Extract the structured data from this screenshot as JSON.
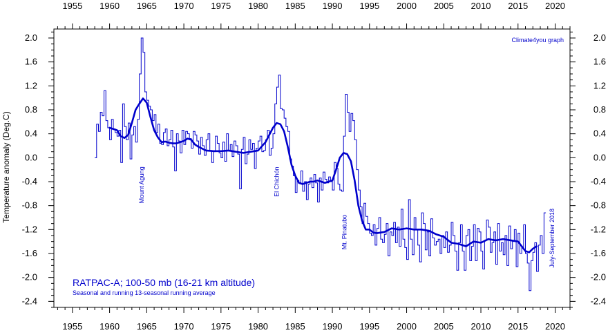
{
  "chart_data": {
    "type": "line",
    "ylabel": "Temperature anomaly (Deg.C)",
    "credit": "Climate4you graph",
    "legend_title": "RATPAC-A; 100-50 mb (16-21 km altitude)",
    "legend_subtitle": "Seasonal and running 13-seasonal running average",
    "xlim": [
      1952.5,
      2022
    ],
    "ylim": [
      -2.5,
      2.15
    ],
    "x_ticks": [
      1955,
      1960,
      1965,
      1970,
      1975,
      1980,
      1985,
      1990,
      1995,
      2000,
      2005,
      2010,
      2015,
      2020
    ],
    "y_ticks": [
      2.0,
      1.6,
      1.2,
      0.8,
      0.4,
      0.0,
      -0.4,
      -0.8,
      -1.2,
      -1.6,
      -2.0,
      -2.4
    ],
    "x_tick_labels": [
      "1955",
      "1960",
      "1965",
      "1970",
      "1975",
      "1980",
      "1985",
      "1990",
      "1995",
      "2000",
      "2005",
      "2010",
      "2015",
      "2020"
    ],
    "y_tick_labels": [
      "2.0",
      "1.6",
      "1.2",
      "0.8",
      "0.4",
      "0.0",
      "-0.4",
      "-0.8",
      "-1.2",
      "-1.6",
      "-2.0",
      "-2.4"
    ],
    "colors": {
      "series": "#0000cc",
      "axis": "#000000",
      "text": "#0000cc"
    },
    "annotations": [
      {
        "text": "Mount Agung",
        "x": 1964.3,
        "y": -0.15
      },
      {
        "text": "El Chichón",
        "x": 1982.5,
        "y": -0.15
      },
      {
        "text": "Mt. Pinatubo",
        "x": 1991.6,
        "y": -0.95
      },
      {
        "text": "July-September 2018",
        "x": 2019.6,
        "y": -0.85
      }
    ],
    "series": [
      {
        "style": "step",
        "x": [
          1958.0,
          1958.25,
          1958.5,
          1958.75,
          1959.0,
          1959.25,
          1959.5,
          1959.75,
          1960.0,
          1960.25,
          1960.5,
          1960.75,
          1961.0,
          1961.25,
          1961.5,
          1961.75,
          1962.0,
          1962.25,
          1962.5,
          1962.75,
          1963.0,
          1963.25,
          1963.5,
          1963.75,
          1964.0,
          1964.25,
          1964.5,
          1964.75,
          1965.0,
          1965.25,
          1965.5,
          1965.75,
          1966.0,
          1966.25,
          1966.5,
          1966.75,
          1967.0,
          1967.25,
          1967.5,
          1967.75,
          1968.0,
          1968.25,
          1968.5,
          1968.75,
          1969.0,
          1969.25,
          1969.5,
          1969.75,
          1970.0,
          1970.25,
          1970.5,
          1970.75,
          1971.0,
          1971.25,
          1971.5,
          1971.75,
          1972.0,
          1972.25,
          1972.5,
          1972.75,
          1973.0,
          1973.25,
          1973.5,
          1973.75,
          1974.0,
          1974.25,
          1974.5,
          1974.75,
          1975.0,
          1975.25,
          1975.5,
          1975.75,
          1976.0,
          1976.25,
          1976.5,
          1976.75,
          1977.0,
          1977.25,
          1977.5,
          1977.75,
          1978.0,
          1978.25,
          1978.5,
          1978.75,
          1979.0,
          1979.25,
          1979.5,
          1979.75,
          1980.0,
          1980.25,
          1980.5,
          1980.75,
          1981.0,
          1981.25,
          1981.5,
          1981.75,
          1982.0,
          1982.25,
          1982.5,
          1982.75,
          1983.0,
          1983.25,
          1983.5,
          1983.75,
          1984.0,
          1984.25,
          1984.5,
          1984.75,
          1985.0,
          1985.25,
          1985.5,
          1985.75,
          1986.0,
          1986.25,
          1986.5,
          1986.75,
          1987.0,
          1987.25,
          1987.5,
          1987.75,
          1988.0,
          1988.25,
          1988.5,
          1988.75,
          1989.0,
          1989.25,
          1989.5,
          1989.75,
          1990.0,
          1990.25,
          1990.5,
          1990.75,
          1991.0,
          1991.25,
          1991.5,
          1991.75,
          1992.0,
          1992.25,
          1992.5,
          1992.75,
          1993.0,
          1993.25,
          1993.5,
          1993.75,
          1994.0,
          1994.25,
          1994.5,
          1994.75,
          1995.0,
          1995.25,
          1995.5,
          1995.75,
          1996.0,
          1996.25,
          1996.5,
          1996.75,
          1997.0,
          1997.25,
          1997.5,
          1997.75,
          1998.0,
          1998.25,
          1998.5,
          1998.75,
          1999.0,
          1999.25,
          1999.5,
          1999.75,
          2000.0,
          2000.25,
          2000.5,
          2000.75,
          2001.0,
          2001.25,
          2001.5,
          2001.75,
          2002.0,
          2002.25,
          2002.5,
          2002.75,
          2003.0,
          2003.25,
          2003.5,
          2003.75,
          2004.0,
          2004.25,
          2004.5,
          2004.75,
          2005.0,
          2005.25,
          2005.5,
          2005.75,
          2006.0,
          2006.25,
          2006.5,
          2006.75,
          2007.0,
          2007.25,
          2007.5,
          2007.75,
          2008.0,
          2008.25,
          2008.5,
          2008.75,
          2009.0,
          2009.25,
          2009.5,
          2009.75,
          2010.0,
          2010.25,
          2010.5,
          2010.75,
          2011.0,
          2011.25,
          2011.5,
          2011.75,
          2012.0,
          2012.25,
          2012.5,
          2012.75,
          2013.0,
          2013.25,
          2013.5,
          2013.75,
          2014.0,
          2014.25,
          2014.5,
          2014.75,
          2015.0,
          2015.25,
          2015.5,
          2015.75,
          2016.0,
          2016.25,
          2016.5,
          2016.75,
          2017.0,
          2017.25,
          2017.5,
          2017.75,
          2018.0,
          2018.25,
          2018.5
        ],
        "y": [
          0.0,
          0.56,
          0.44,
          0.76,
          0.7,
          1.12,
          0.62,
          0.5,
          0.3,
          0.64,
          0.48,
          0.42,
          0.36,
          0.46,
          -0.08,
          0.9,
          0.52,
          0.3,
          0.58,
          -0.02,
          0.38,
          0.52,
          0.26,
          0.64,
          1.4,
          2.0,
          1.76,
          1.1,
          0.96,
          0.86,
          0.8,
          0.62,
          0.72,
          0.42,
          0.56,
          0.24,
          0.22,
          0.42,
          0.48,
          0.2,
          0.3,
          0.46,
          0.18,
          -0.22,
          0.4,
          0.28,
          0.08,
          0.46,
          0.22,
          0.44,
          0.4,
          0.32,
          0.16,
          0.44,
          0.38,
          0.28,
          0.06,
          0.34,
          0.2,
          0.04,
          0.3,
          0.4,
          0.12,
          -0.08,
          0.1,
          0.36,
          0.24,
          0.08,
          0.0,
          0.26,
          -0.06,
          0.4,
          0.12,
          0.22,
          0.02,
          0.28,
          0.2,
          0.06,
          -0.52,
          0.14,
          0.34,
          -0.1,
          0.06,
          0.3,
          0.14,
          0.24,
          -0.18,
          0.16,
          0.28,
          0.36,
          0.1,
          0.12,
          0.3,
          0.46,
          0.04,
          0.16,
          0.4,
          0.9,
          1.18,
          1.38,
          0.82,
          0.8,
          0.66,
          0.52,
          0.44,
          -0.02,
          -0.14,
          -0.3,
          -0.58,
          -0.38,
          -0.42,
          -0.22,
          -0.56,
          -0.4,
          -0.7,
          -0.44,
          -0.34,
          -0.5,
          -0.28,
          -0.42,
          -0.74,
          -0.34,
          -0.54,
          -0.24,
          -0.36,
          -0.42,
          -0.32,
          -0.4,
          -0.54,
          -0.08,
          -0.18,
          -0.44,
          -0.54,
          -0.56,
          0.36,
          1.06,
          0.76,
          0.44,
          0.74,
          0.62,
          0.3,
          -0.2,
          -0.54,
          -0.82,
          -1.1,
          -0.76,
          -0.98,
          -1.1,
          -1.26,
          -1.3,
          -1.12,
          -1.46,
          -1.18,
          -1.0,
          -1.36,
          -1.42,
          -1.28,
          -1.1,
          -1.64,
          -1.24,
          -1.3,
          -1.08,
          -1.42,
          -1.16,
          -1.48,
          -0.86,
          -1.36,
          -1.5,
          -1.7,
          -0.7,
          -1.36,
          -1.62,
          -1.0,
          -1.2,
          -1.46,
          -1.74,
          -0.92,
          -1.1,
          -1.54,
          -1.24,
          -1.64,
          -1.02,
          -1.34,
          -1.46,
          -1.4,
          -1.36,
          -1.6,
          -1.3,
          -1.5,
          -1.24,
          -1.58,
          -1.46,
          -1.08,
          -1.3,
          -1.56,
          -1.88,
          -1.42,
          -1.12,
          -1.56,
          -1.88,
          -1.3,
          -1.2,
          -1.72,
          -1.48,
          -1.12,
          -1.72,
          -1.18,
          -1.24,
          -1.56,
          -1.86,
          -1.38,
          -1.04,
          -1.16,
          -1.58,
          -1.42,
          -1.24,
          -1.78,
          -1.1,
          -1.56,
          -1.42,
          -1.62,
          -1.3,
          -1.8,
          -1.14,
          -1.52,
          -1.4,
          -1.2,
          -1.82,
          -1.26,
          -1.6,
          -1.5,
          -1.12,
          -1.6,
          -1.76,
          -2.22,
          -1.72,
          -1.58,
          -1.42,
          -1.9,
          -1.46,
          -1.3,
          -1.6,
          -0.92
        ]
      },
      {
        "style": "smooth",
        "x": [
          1960.0,
          1961.0,
          1961.5,
          1962.0,
          1962.5,
          1963.0,
          1963.5,
          1964.0,
          1964.5,
          1965.0,
          1965.5,
          1966.0,
          1966.5,
          1967.0,
          1967.5,
          1968.0,
          1968.5,
          1969.0,
          1970.0,
          1970.5,
          1971.0,
          1971.5,
          1972.0,
          1973.0,
          1974.0,
          1975.0,
          1976.0,
          1977.0,
          1978.0,
          1979.0,
          1980.0,
          1981.0,
          1982.0,
          1982.5,
          1983.0,
          1983.5,
          1984.0,
          1984.5,
          1985.0,
          1985.5,
          1986.0,
          1986.5,
          1987.0,
          1987.5,
          1988.0,
          1989.0,
          1990.0,
          1990.5,
          1991.0,
          1991.5,
          1992.0,
          1992.5,
          1993.0,
          1993.5,
          1994.0,
          1994.5,
          1995.0,
          1995.5,
          1996.0,
          1997.0,
          1998.0,
          1999.0,
          2000.0,
          2001.0,
          2002.0,
          2003.0,
          2004.0,
          2005.0,
          2006.0,
          2007.0,
          2008.0,
          2009.0,
          2010.0,
          2011.0,
          2012.0,
          2013.0,
          2014.0,
          2015.0,
          2015.5,
          2016.0,
          2016.5,
          2017.0,
          2017.5
        ],
        "y": [
          0.5,
          0.46,
          0.36,
          0.33,
          0.38,
          0.58,
          0.8,
          0.9,
          0.99,
          0.92,
          0.68,
          0.46,
          0.34,
          0.26,
          0.27,
          0.25,
          0.24,
          0.24,
          0.28,
          0.32,
          0.3,
          0.22,
          0.18,
          0.12,
          0.11,
          0.11,
          0.12,
          0.1,
          0.08,
          0.1,
          0.12,
          0.26,
          0.5,
          0.58,
          0.56,
          0.44,
          0.18,
          -0.12,
          -0.3,
          -0.42,
          -0.44,
          -0.42,
          -0.4,
          -0.4,
          -0.38,
          -0.42,
          -0.38,
          -0.2,
          0.0,
          0.08,
          0.06,
          -0.06,
          -0.38,
          -0.8,
          -1.05,
          -1.2,
          -1.2,
          -1.25,
          -1.26,
          -1.24,
          -1.18,
          -1.2,
          -1.18,
          -1.2,
          -1.2,
          -1.22,
          -1.28,
          -1.32,
          -1.42,
          -1.44,
          -1.48,
          -1.4,
          -1.42,
          -1.36,
          -1.38,
          -1.36,
          -1.38,
          -1.4,
          -1.48,
          -1.56,
          -1.58,
          -1.52,
          -1.48
        ]
      }
    ]
  }
}
